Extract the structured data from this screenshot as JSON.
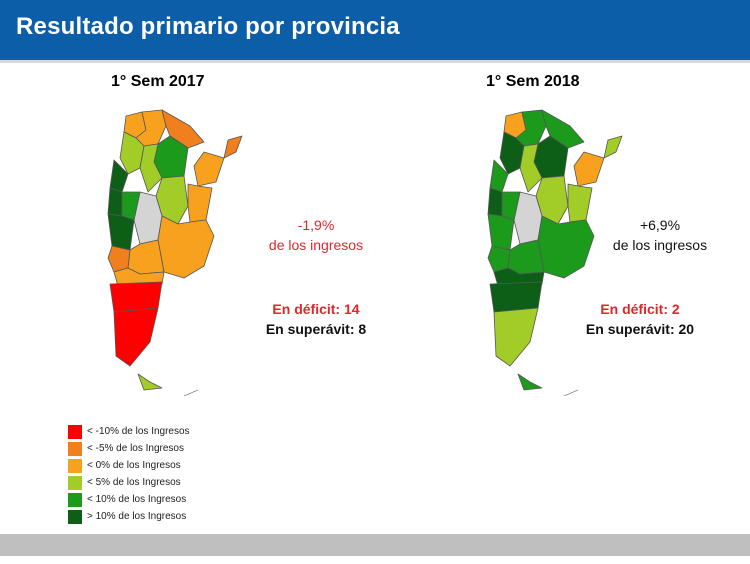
{
  "header": {
    "title": "Resultado primario por provincia"
  },
  "maps": [
    {
      "title": "1° Sem 2017",
      "result_value": "-1,9%",
      "result_label": "de los ingresos",
      "deficit": "En déficit: 14",
      "surplus": "En superávit: 8"
    },
    {
      "title": "1° Sem 2018",
      "result_value": "+6,9%",
      "result_label": "de los ingresos",
      "deficit": "En déficit: 2",
      "surplus": "En superávit: 20"
    }
  ],
  "legend": [
    {
      "label": "< -10% de los Ingresos",
      "color": "#ff0000"
    },
    {
      "label": "< -5% de los Ingresos",
      "color": "#f07f1e"
    },
    {
      "label": "< 0% de los Ingresos",
      "color": "#f8a11f"
    },
    {
      "label": "< 5% de los Ingresos",
      "color": "#a2cc28"
    },
    {
      "label": "< 10% de los Ingresos",
      "color": "#1c9a1c"
    },
    {
      "label": "> 10% de los Ingresos",
      "color": "#0d5e17"
    }
  ],
  "colors": {
    "header_bg": "#0d5ea8",
    "no_data": "#d4d4d4"
  }
}
